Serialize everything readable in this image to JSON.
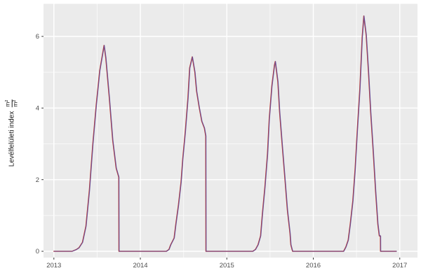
{
  "figure": {
    "background": "#ffffff"
  },
  "y_axis_title": {
    "text": "Levélfelületi index",
    "frac_num": "m²",
    "frac_den": "m²"
  },
  "chart_data": {
    "type": "line",
    "title": "",
    "xlabel": "",
    "ylabel": "Levélfelületi index (m²/m²)",
    "panel_background": "#ebebeb",
    "grid_major_color": "#ffffff",
    "grid_minor_color": "#ffffff",
    "grid": "major+minor",
    "legend": "none",
    "tick_mark_color": "#333333",
    "tick_label_color": "#4d4d4d",
    "xlim": [
      2012.88,
      2017.205
    ],
    "ylim": [
      -0.176,
      6.909
    ],
    "x_ticks": [
      2013,
      2014,
      2015,
      2016,
      2017
    ],
    "x_minor": [
      2013.5,
      2014.5,
      2015.5,
      2016.5
    ],
    "y_ticks": [
      0,
      2,
      4,
      6
    ],
    "y_minor": [
      1,
      3,
      5
    ],
    "series": [
      {
        "name": "red-line",
        "color": "#c0392b",
        "width": 1.4,
        "opacity": 1
      },
      {
        "name": "purple-line",
        "color": "#5e4fa2",
        "width": 1.1,
        "opacity": 0.85
      }
    ],
    "points": [
      [
        2013.0,
        0
      ],
      [
        2013.21,
        0
      ],
      [
        2013.26,
        0.05
      ],
      [
        2013.29,
        0.1
      ],
      [
        2013.33,
        0.25
      ],
      [
        2013.37,
        0.7
      ],
      [
        2013.41,
        1.7
      ],
      [
        2013.45,
        3.0
      ],
      [
        2013.49,
        4.1
      ],
      [
        2013.53,
        5.05
      ],
      [
        2013.58,
        5.75
      ],
      [
        2013.6,
        5.4
      ],
      [
        2013.64,
        4.3
      ],
      [
        2013.68,
        3.1
      ],
      [
        2013.72,
        2.32
      ],
      [
        2013.75,
        2.07
      ],
      [
        2013.752,
        0
      ],
      [
        2014.3,
        0
      ],
      [
        2014.33,
        0.05
      ],
      [
        2014.35,
        0.18
      ],
      [
        2014.39,
        0.37
      ],
      [
        2014.41,
        0.76
      ],
      [
        2014.44,
        1.29
      ],
      [
        2014.47,
        1.93
      ],
      [
        2014.49,
        2.58
      ],
      [
        2014.52,
        3.36
      ],
      [
        2014.55,
        4.28
      ],
      [
        2014.57,
        5.12
      ],
      [
        2014.6,
        5.43
      ],
      [
        2014.63,
        5.0
      ],
      [
        2014.65,
        4.47
      ],
      [
        2014.68,
        4.02
      ],
      [
        2014.71,
        3.63
      ],
      [
        2014.74,
        3.44
      ],
      [
        2014.756,
        3.22
      ],
      [
        2014.758,
        0
      ],
      [
        2015.3,
        0
      ],
      [
        2015.33,
        0.05
      ],
      [
        2015.36,
        0.18
      ],
      [
        2015.39,
        0.43
      ],
      [
        2015.41,
        1.02
      ],
      [
        2015.44,
        1.8
      ],
      [
        2015.47,
        2.72
      ],
      [
        2015.49,
        3.69
      ],
      [
        2015.52,
        4.61
      ],
      [
        2015.55,
        5.19
      ],
      [
        2015.56,
        5.3
      ],
      [
        2015.59,
        4.73
      ],
      [
        2015.61,
        3.89
      ],
      [
        2015.64,
        2.97
      ],
      [
        2015.67,
        2.07
      ],
      [
        2015.7,
        1.15
      ],
      [
        2015.73,
        0.51
      ],
      [
        2015.74,
        0.18
      ],
      [
        2015.76,
        0
      ],
      [
        2016.33,
        0
      ],
      [
        2016.35,
        0
      ],
      [
        2016.376,
        0.12
      ],
      [
        2016.403,
        0.31
      ],
      [
        2016.427,
        0.76
      ],
      [
        2016.457,
        1.41
      ],
      [
        2016.484,
        2.32
      ],
      [
        2016.508,
        3.36
      ],
      [
        2016.538,
        4.53
      ],
      [
        2016.565,
        5.98
      ],
      [
        2016.584,
        6.57
      ],
      [
        2016.611,
        6.04
      ],
      [
        2016.638,
        5.0
      ],
      [
        2016.663,
        3.89
      ],
      [
        2016.693,
        2.77
      ],
      [
        2016.72,
        1.68
      ],
      [
        2016.746,
        0.76
      ],
      [
        2016.763,
        0.43
      ],
      [
        2016.776,
        0.43
      ],
      [
        2016.777,
        0
      ],
      [
        2016.96,
        0
      ]
    ]
  }
}
